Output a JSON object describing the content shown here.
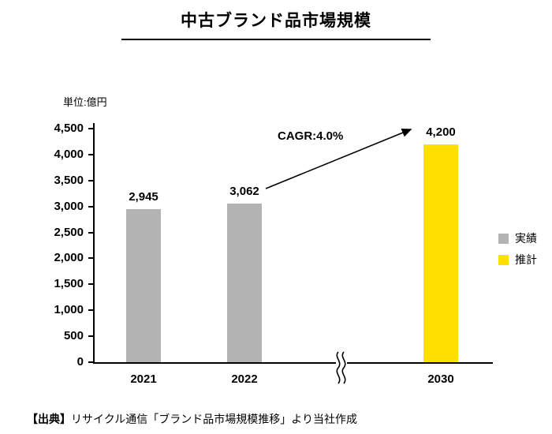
{
  "title": "中古ブランド品市場規模",
  "unit_label": "単位:億円",
  "annotation": "CAGR:4.0%",
  "legend": [
    {
      "label": "実績",
      "color": "#b3b3b3"
    },
    {
      "label": "推計",
      "color": "#ffe000"
    }
  ],
  "source": {
    "prefix": "【出典】",
    "text": "リサイクル通信「ブランド品市場規模推移」より当社作成"
  },
  "chart_data": {
    "type": "bar",
    "title": "中古ブランド品市場規模",
    "unit": "億円",
    "categories": [
      "2021",
      "2022",
      "2030"
    ],
    "values": [
      2945,
      3062,
      4200
    ],
    "value_labels": [
      "2,945",
      "3,062",
      "4,200"
    ],
    "bar_colors": [
      "#b3b3b3",
      "#b3b3b3",
      "#ffe000"
    ],
    "bar_series": [
      "実績",
      "実績",
      "推計"
    ],
    "ylim": [
      0,
      4500
    ],
    "ytick_step": 500,
    "yticks": [
      "0",
      "500",
      "1,000",
      "1,500",
      "2,000",
      "2,500",
      "3,000",
      "3,500",
      "4,000",
      "4,500"
    ],
    "grid": false,
    "legend_position": "right",
    "annotation": "CAGR:4.0%",
    "axis_break_between": [
      "2022",
      "2030"
    ]
  }
}
